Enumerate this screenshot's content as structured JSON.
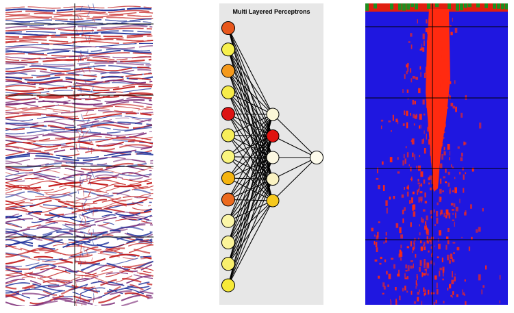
{
  "figure": {
    "panels": [
      {
        "id": "seismic-section",
        "description": "input seismic amplitude section"
      },
      {
        "id": "mlp-network",
        "description": "neural network diagram"
      },
      {
        "id": "probability-volume",
        "description": "network output section"
      }
    ]
  },
  "mlp": {
    "title": "Multi Layered Perceptrons",
    "input_nodes": [
      "#e8571c",
      "#f7f04e",
      "#f59a1d",
      "#f7ec4a",
      "#dd1313",
      "#f7ee5a",
      "#f9f57e",
      "#f5b40f",
      "#ec6a1e",
      "#fbf6a8",
      "#fbf49a",
      "#f9ef6d",
      "#f7ea38"
    ],
    "hidden_nodes": [
      "#fcf7d8",
      "#e0120f",
      "#fcf8e2",
      "#fbf3c3",
      "#f6c91e"
    ],
    "output_nodes": [
      "#fdfbec"
    ],
    "link_color": "#000000",
    "background": "#e7e7e7"
  },
  "seismic": {
    "colors": {
      "positive": "#1c2f9a",
      "negative": "#c41e1e",
      "mid": "#7e2f7a",
      "background": "#ffffff"
    },
    "grid_color": "#000000"
  },
  "probability": {
    "colors": {
      "background": "#1f17e0",
      "high": "#ff2a10",
      "top_strip_red": "#e02010",
      "top_strip_green": "#1f8f20"
    },
    "grid_color": "#000000"
  }
}
